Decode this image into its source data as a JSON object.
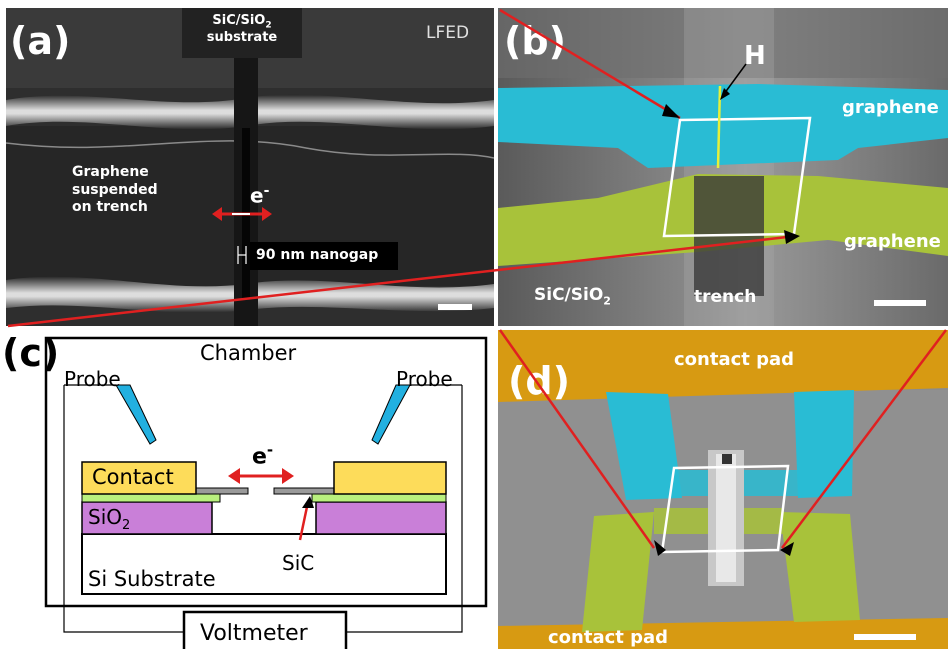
{
  "panel_a": {
    "label": "(a)",
    "substrate_line1": "SiC/SiO",
    "substrate_sub": "2",
    "substrate_line2": "substrate",
    "mode": "LFED",
    "graphene_line1": "Graphene",
    "graphene_line2": "suspended",
    "graphene_line3": "on trench",
    "electron": "e",
    "electron_sup": "-",
    "gap_text": "90 nm nanogap"
  },
  "panel_b": {
    "label": "(b)",
    "height_marker": "H",
    "graphene_top": "graphene",
    "graphene_bottom": "graphene",
    "substrate_main": "SiC/SiO",
    "substrate_sub": "2",
    "trench": "trench"
  },
  "panel_c": {
    "label": "(c)",
    "chamber": "Chamber",
    "probe_left": "Probe",
    "probe_right": "Probe",
    "contact": "Contact",
    "electron": "e",
    "electron_sup": "-",
    "sio2_main": "SiO",
    "sio2_sub": "2",
    "sic": "SiC",
    "substrate": "Si Substrate",
    "voltmeter": "Voltmeter"
  },
  "panel_d": {
    "label": "(d)",
    "contact_top": "contact pad",
    "contact_bottom": "contact pad"
  },
  "colors": {
    "graphene_cyan": "#29bcd4",
    "graphene_green": "#a8c23a",
    "contact_pad": "#d79a12",
    "contact_yellow": "#fddc5a",
    "sio2_violet": "#c97fd8",
    "sic_green": "#b9f07e",
    "arrow_red": "#e02020"
  }
}
